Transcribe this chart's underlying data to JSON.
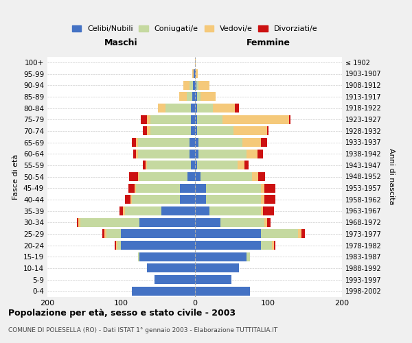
{
  "age_groups": [
    "0-4",
    "5-9",
    "10-14",
    "15-19",
    "20-24",
    "25-29",
    "30-34",
    "35-39",
    "40-44",
    "45-49",
    "50-54",
    "55-59",
    "60-64",
    "65-69",
    "70-74",
    "75-79",
    "80-84",
    "85-89",
    "90-94",
    "95-99",
    "100+"
  ],
  "birth_years": [
    "1998-2002",
    "1993-1997",
    "1988-1992",
    "1983-1987",
    "1978-1982",
    "1973-1977",
    "1968-1972",
    "1963-1967",
    "1958-1962",
    "1953-1957",
    "1948-1952",
    "1943-1947",
    "1938-1942",
    "1933-1937",
    "1928-1932",
    "1923-1927",
    "1918-1922",
    "1913-1917",
    "1908-1912",
    "1903-1907",
    "≤ 1902"
  ],
  "colors": {
    "celibi": "#4472c4",
    "coniugati": "#c5d9a0",
    "vedovi": "#f5c97a",
    "divorziati": "#cc1111"
  },
  "maschi": {
    "celibi": [
      85,
      55,
      65,
      75,
      100,
      100,
      75,
      45,
      20,
      20,
      10,
      5,
      7,
      7,
      5,
      5,
      5,
      3,
      2,
      1,
      0
    ],
    "coniugati": [
      0,
      0,
      0,
      2,
      5,
      20,
      80,
      50,
      65,
      60,
      65,
      60,
      70,
      70,
      55,
      55,
      35,
      8,
      5,
      0,
      0
    ],
    "vedovi": [
      0,
      0,
      0,
      0,
      2,
      3,
      3,
      2,
      2,
      2,
      2,
      2,
      3,
      3,
      5,
      5,
      10,
      10,
      8,
      2,
      0
    ],
    "divorziati": [
      0,
      0,
      0,
      0,
      2,
      2,
      2,
      5,
      8,
      8,
      12,
      3,
      3,
      5,
      5,
      8,
      0,
      0,
      0,
      0,
      0
    ]
  },
  "femmine": {
    "celibi": [
      75,
      50,
      60,
      70,
      90,
      90,
      35,
      20,
      15,
      15,
      8,
      3,
      5,
      5,
      3,
      3,
      3,
      3,
      2,
      1,
      0
    ],
    "coniugati": [
      0,
      0,
      0,
      5,
      15,
      50,
      60,
      70,
      75,
      75,
      70,
      55,
      65,
      60,
      50,
      35,
      22,
      5,
      3,
      0,
      0
    ],
    "vedovi": [
      0,
      0,
      0,
      0,
      3,
      5,
      3,
      3,
      5,
      5,
      8,
      10,
      15,
      25,
      45,
      90,
      30,
      20,
      15,
      3,
      1
    ],
    "divorziati": [
      0,
      0,
      0,
      0,
      2,
      5,
      5,
      15,
      15,
      15,
      10,
      5,
      8,
      8,
      2,
      2,
      5,
      0,
      0,
      0,
      0
    ]
  },
  "title": "Popolazione per età, sesso e stato civile - 2003",
  "subtitle": "COMUNE DI POLESELLA (RO) - Dati ISTAT 1° gennaio 2003 - Elaborazione TUTTITALIA.IT",
  "xlabel_maschi": "Maschi",
  "xlabel_femmine": "Femmine",
  "ylabel_left": "Fasce di età",
  "ylabel_right": "Anni di nascita",
  "xlim": 200,
  "bg_color": "#f0f0f0",
  "plot_bg": "#ffffff",
  "grid_color": "#cccccc"
}
